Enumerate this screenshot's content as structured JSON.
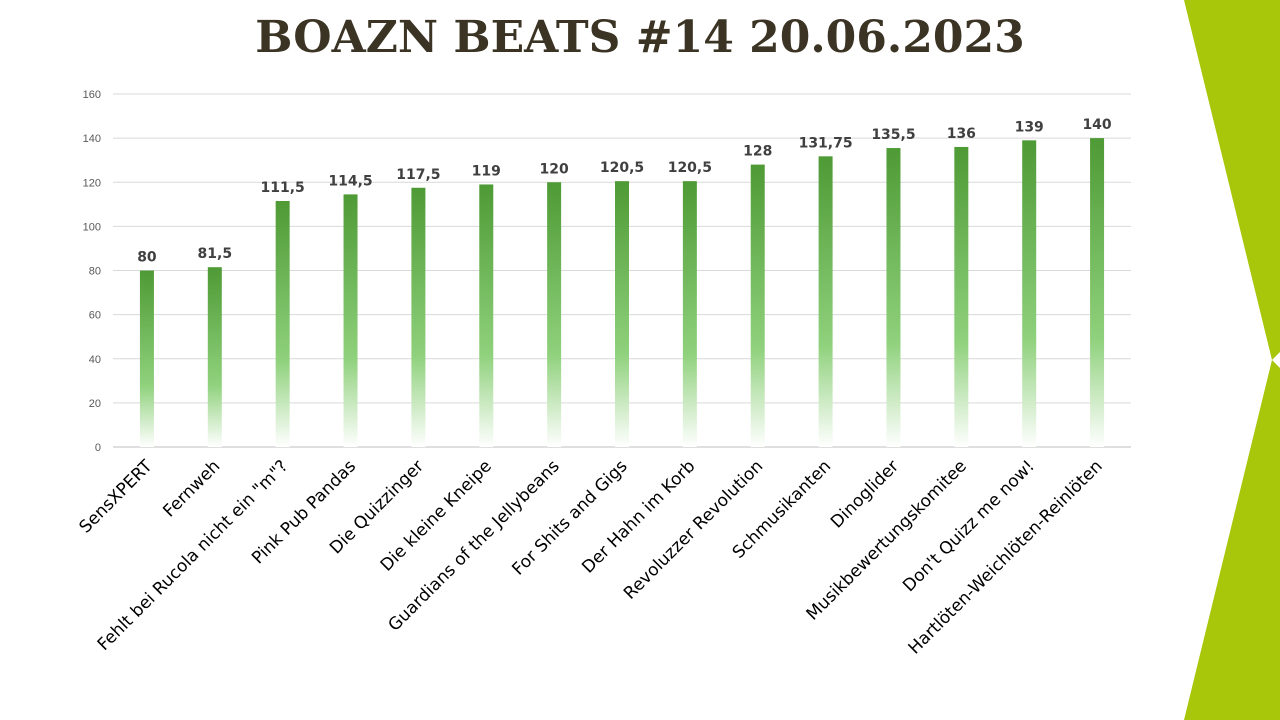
{
  "slide": {
    "title": "BOAZN BEATS #14 20.06.2023",
    "accent_color": "#a8c70a"
  },
  "chart_data": {
    "type": "bar",
    "title": "BOAZN BEATS #14 20.06.2023",
    "xlabel": "",
    "ylabel": "",
    "ylim": [
      0,
      160
    ],
    "yticks": [
      0,
      20,
      40,
      60,
      80,
      100,
      120,
      140,
      160
    ],
    "grid": true,
    "bar_color_top": "#4e9a35",
    "bar_color_bottom": "#ffffff",
    "categories": [
      "SensXPERT",
      "Fernweh",
      "Fehlt bei Rucola nicht ein \"m\"?",
      "Pink Pub Pandas",
      "Die Quizzinger",
      "Die kleine Kneipe",
      "Guardians of the Jellybeans",
      "For Shits and Gigs",
      "Der Hahn im Korb",
      "Revoluzzer Revolution",
      "Schmusikanten",
      "Dinoglider",
      "Musikbewertungskomitee",
      "Don't Quizz me now!",
      "Hartlöten-Weichlöten-Reinlöten"
    ],
    "values": [
      80,
      81.5,
      111.5,
      114.5,
      117.5,
      119,
      120,
      120.5,
      120.5,
      128,
      131.75,
      135.5,
      136,
      139,
      140
    ],
    "data_labels": [
      "80",
      "81,5",
      "111,5",
      "114,5",
      "117,5",
      "119",
      "120",
      "120,5",
      "120,5",
      "128",
      "131,75",
      "135,5",
      "136",
      "139",
      "140"
    ]
  }
}
